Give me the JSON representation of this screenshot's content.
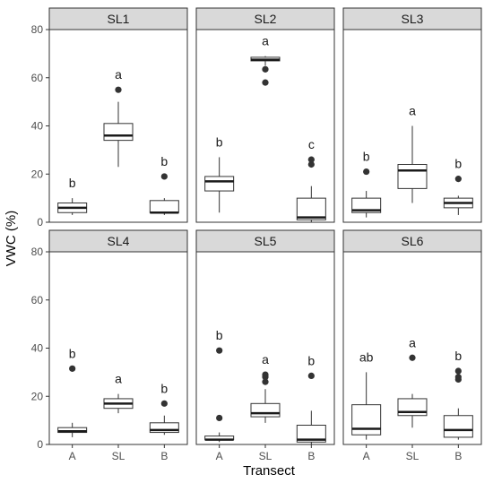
{
  "chart_data": {
    "type": "boxplot",
    "title": "",
    "xlabel": "Transect",
    "ylabel": "VWC (%)",
    "ylim": [
      0,
      80
    ],
    "yticks": [
      0,
      20,
      40,
      60,
      80
    ],
    "categories": [
      "A",
      "SL",
      "B"
    ],
    "grid": false,
    "facets": [
      {
        "name": "SL1",
        "boxes": [
          {
            "category": "A",
            "letter": "b",
            "min": 3,
            "q1": 4,
            "median": 6,
            "q3": 8,
            "max": 10,
            "outliers": []
          },
          {
            "category": "SL",
            "letter": "a",
            "min": 23,
            "q1": 34,
            "median": 36,
            "q3": 41,
            "max": 50,
            "outliers": [
              55
            ]
          },
          {
            "category": "B",
            "letter": "b",
            "min": 3,
            "q1": 4,
            "median": 4,
            "q3": 9,
            "max": 10,
            "outliers": [
              19
            ]
          }
        ]
      },
      {
        "name": "SL2",
        "boxes": [
          {
            "category": "A",
            "letter": "b",
            "min": 4,
            "q1": 13,
            "median": 17,
            "q3": 19,
            "max": 27,
            "outliers": []
          },
          {
            "category": "SL",
            "letter": "a",
            "min": 65,
            "q1": 67,
            "median": 67.5,
            "q3": 68.5,
            "max": 69,
            "outliers": [
              63.5,
              58
            ]
          },
          {
            "category": "B",
            "letter": "c",
            "min": 0,
            "q1": 1,
            "median": 2,
            "q3": 10,
            "max": 15,
            "outliers": [
              24,
              26
            ]
          }
        ]
      },
      {
        "name": "SL3",
        "boxes": [
          {
            "category": "A",
            "letter": "b",
            "min": 2,
            "q1": 4,
            "median": 5,
            "q3": 10,
            "max": 13,
            "outliers": [
              21
            ]
          },
          {
            "category": "SL",
            "letter": "a",
            "min": 8,
            "q1": 14,
            "median": 21.5,
            "q3": 24,
            "max": 40,
            "outliers": []
          },
          {
            "category": "B",
            "letter": "b",
            "min": 3,
            "q1": 6,
            "median": 8,
            "q3": 10,
            "max": 11,
            "outliers": [
              18
            ]
          }
        ]
      },
      {
        "name": "SL4",
        "boxes": [
          {
            "category": "A",
            "letter": "b",
            "min": 3,
            "q1": 5,
            "median": 5.5,
            "q3": 7,
            "max": 9,
            "outliers": [
              31.5
            ]
          },
          {
            "category": "SL",
            "letter": "a",
            "min": 13,
            "q1": 15,
            "median": 17,
            "q3": 19,
            "max": 21,
            "outliers": []
          },
          {
            "category": "B",
            "letter": "b",
            "min": 4,
            "q1": 5,
            "median": 6,
            "q3": 9,
            "max": 12,
            "outliers": [
              17
            ]
          }
        ]
      },
      {
        "name": "SL5",
        "boxes": [
          {
            "category": "A",
            "letter": "b",
            "min": 1,
            "q1": 2,
            "median": 2,
            "q3": 3.5,
            "max": 5,
            "outliers": [
              11,
              39
            ]
          },
          {
            "category": "SL",
            "letter": "a",
            "min": 9,
            "q1": 11.5,
            "median": 13,
            "q3": 17,
            "max": 23,
            "outliers": [
              26,
              28,
              29
            ]
          },
          {
            "category": "B",
            "letter": "b",
            "min": 0,
            "q1": 1,
            "median": 2,
            "q3": 8,
            "max": 14,
            "outliers": [
              28.5
            ]
          }
        ]
      },
      {
        "name": "SL6",
        "boxes": [
          {
            "category": "A",
            "letter": "ab",
            "min": 2,
            "q1": 4,
            "median": 6.5,
            "q3": 16.5,
            "max": 30,
            "outliers": []
          },
          {
            "category": "SL",
            "letter": "a",
            "min": 7,
            "q1": 12,
            "median": 13.5,
            "q3": 19,
            "max": 21,
            "outliers": [
              36
            ]
          },
          {
            "category": "B",
            "letter": "b",
            "min": 2,
            "q1": 3,
            "median": 6,
            "q3": 12,
            "max": 15,
            "outliers": [
              27,
              28,
              30.5
            ]
          }
        ]
      }
    ]
  }
}
